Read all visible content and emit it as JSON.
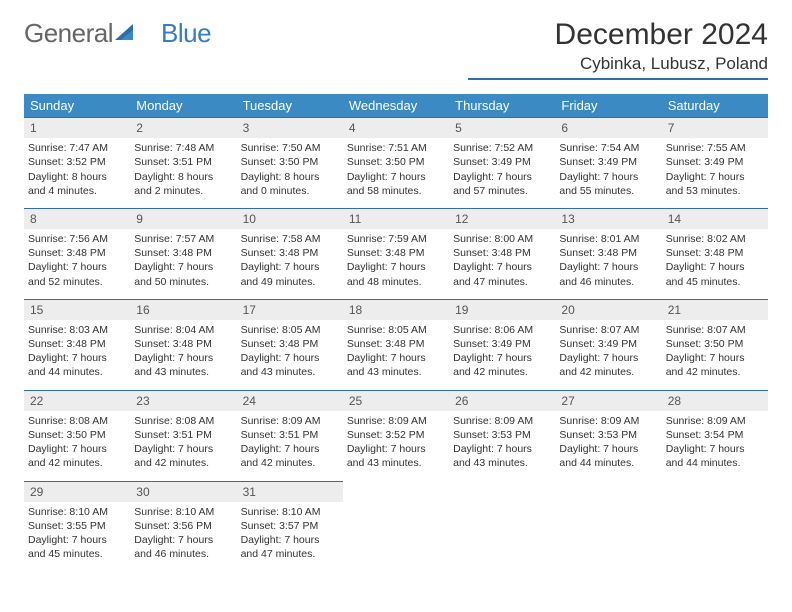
{
  "brand": {
    "word1": "General",
    "word2": "Blue"
  },
  "title": "December 2024",
  "location": "Cybinka, Lubusz, Poland",
  "colors": {
    "header_bg": "#3b8ac4",
    "header_text": "#ffffff",
    "rule": "#2f6ea8",
    "daynum_bg": "#ededed",
    "brand_blue": "#3b7bbf",
    "text": "#333333",
    "page_bg": "#ffffff"
  },
  "weekdays": [
    "Sunday",
    "Monday",
    "Tuesday",
    "Wednesday",
    "Thursday",
    "Friday",
    "Saturday"
  ],
  "days": [
    {
      "n": "1",
      "sr": "Sunrise: 7:47 AM",
      "ss": "Sunset: 3:52 PM",
      "dl": "Daylight: 8 hours and 4 minutes."
    },
    {
      "n": "2",
      "sr": "Sunrise: 7:48 AM",
      "ss": "Sunset: 3:51 PM",
      "dl": "Daylight: 8 hours and 2 minutes."
    },
    {
      "n": "3",
      "sr": "Sunrise: 7:50 AM",
      "ss": "Sunset: 3:50 PM",
      "dl": "Daylight: 8 hours and 0 minutes."
    },
    {
      "n": "4",
      "sr": "Sunrise: 7:51 AM",
      "ss": "Sunset: 3:50 PM",
      "dl": "Daylight: 7 hours and 58 minutes."
    },
    {
      "n": "5",
      "sr": "Sunrise: 7:52 AM",
      "ss": "Sunset: 3:49 PM",
      "dl": "Daylight: 7 hours and 57 minutes."
    },
    {
      "n": "6",
      "sr": "Sunrise: 7:54 AM",
      "ss": "Sunset: 3:49 PM",
      "dl": "Daylight: 7 hours and 55 minutes."
    },
    {
      "n": "7",
      "sr": "Sunrise: 7:55 AM",
      "ss": "Sunset: 3:49 PM",
      "dl": "Daylight: 7 hours and 53 minutes."
    },
    {
      "n": "8",
      "sr": "Sunrise: 7:56 AM",
      "ss": "Sunset: 3:48 PM",
      "dl": "Daylight: 7 hours and 52 minutes."
    },
    {
      "n": "9",
      "sr": "Sunrise: 7:57 AM",
      "ss": "Sunset: 3:48 PM",
      "dl": "Daylight: 7 hours and 50 minutes."
    },
    {
      "n": "10",
      "sr": "Sunrise: 7:58 AM",
      "ss": "Sunset: 3:48 PM",
      "dl": "Daylight: 7 hours and 49 minutes."
    },
    {
      "n": "11",
      "sr": "Sunrise: 7:59 AM",
      "ss": "Sunset: 3:48 PM",
      "dl": "Daylight: 7 hours and 48 minutes."
    },
    {
      "n": "12",
      "sr": "Sunrise: 8:00 AM",
      "ss": "Sunset: 3:48 PM",
      "dl": "Daylight: 7 hours and 47 minutes."
    },
    {
      "n": "13",
      "sr": "Sunrise: 8:01 AM",
      "ss": "Sunset: 3:48 PM",
      "dl": "Daylight: 7 hours and 46 minutes."
    },
    {
      "n": "14",
      "sr": "Sunrise: 8:02 AM",
      "ss": "Sunset: 3:48 PM",
      "dl": "Daylight: 7 hours and 45 minutes."
    },
    {
      "n": "15",
      "sr": "Sunrise: 8:03 AM",
      "ss": "Sunset: 3:48 PM",
      "dl": "Daylight: 7 hours and 44 minutes."
    },
    {
      "n": "16",
      "sr": "Sunrise: 8:04 AM",
      "ss": "Sunset: 3:48 PM",
      "dl": "Daylight: 7 hours and 43 minutes."
    },
    {
      "n": "17",
      "sr": "Sunrise: 8:05 AM",
      "ss": "Sunset: 3:48 PM",
      "dl": "Daylight: 7 hours and 43 minutes."
    },
    {
      "n": "18",
      "sr": "Sunrise: 8:05 AM",
      "ss": "Sunset: 3:48 PM",
      "dl": "Daylight: 7 hours and 43 minutes."
    },
    {
      "n": "19",
      "sr": "Sunrise: 8:06 AM",
      "ss": "Sunset: 3:49 PM",
      "dl": "Daylight: 7 hours and 42 minutes."
    },
    {
      "n": "20",
      "sr": "Sunrise: 8:07 AM",
      "ss": "Sunset: 3:49 PM",
      "dl": "Daylight: 7 hours and 42 minutes."
    },
    {
      "n": "21",
      "sr": "Sunrise: 8:07 AM",
      "ss": "Sunset: 3:50 PM",
      "dl": "Daylight: 7 hours and 42 minutes."
    },
    {
      "n": "22",
      "sr": "Sunrise: 8:08 AM",
      "ss": "Sunset: 3:50 PM",
      "dl": "Daylight: 7 hours and 42 minutes."
    },
    {
      "n": "23",
      "sr": "Sunrise: 8:08 AM",
      "ss": "Sunset: 3:51 PM",
      "dl": "Daylight: 7 hours and 42 minutes."
    },
    {
      "n": "24",
      "sr": "Sunrise: 8:09 AM",
      "ss": "Sunset: 3:51 PM",
      "dl": "Daylight: 7 hours and 42 minutes."
    },
    {
      "n": "25",
      "sr": "Sunrise: 8:09 AM",
      "ss": "Sunset: 3:52 PM",
      "dl": "Daylight: 7 hours and 43 minutes."
    },
    {
      "n": "26",
      "sr": "Sunrise: 8:09 AM",
      "ss": "Sunset: 3:53 PM",
      "dl": "Daylight: 7 hours and 43 minutes."
    },
    {
      "n": "27",
      "sr": "Sunrise: 8:09 AM",
      "ss": "Sunset: 3:53 PM",
      "dl": "Daylight: 7 hours and 44 minutes."
    },
    {
      "n": "28",
      "sr": "Sunrise: 8:09 AM",
      "ss": "Sunset: 3:54 PM",
      "dl": "Daylight: 7 hours and 44 minutes."
    },
    {
      "n": "29",
      "sr": "Sunrise: 8:10 AM",
      "ss": "Sunset: 3:55 PM",
      "dl": "Daylight: 7 hours and 45 minutes."
    },
    {
      "n": "30",
      "sr": "Sunrise: 8:10 AM",
      "ss": "Sunset: 3:56 PM",
      "dl": "Daylight: 7 hours and 46 minutes."
    },
    {
      "n": "31",
      "sr": "Sunrise: 8:10 AM",
      "ss": "Sunset: 3:57 PM",
      "dl": "Daylight: 7 hours and 47 minutes."
    }
  ]
}
